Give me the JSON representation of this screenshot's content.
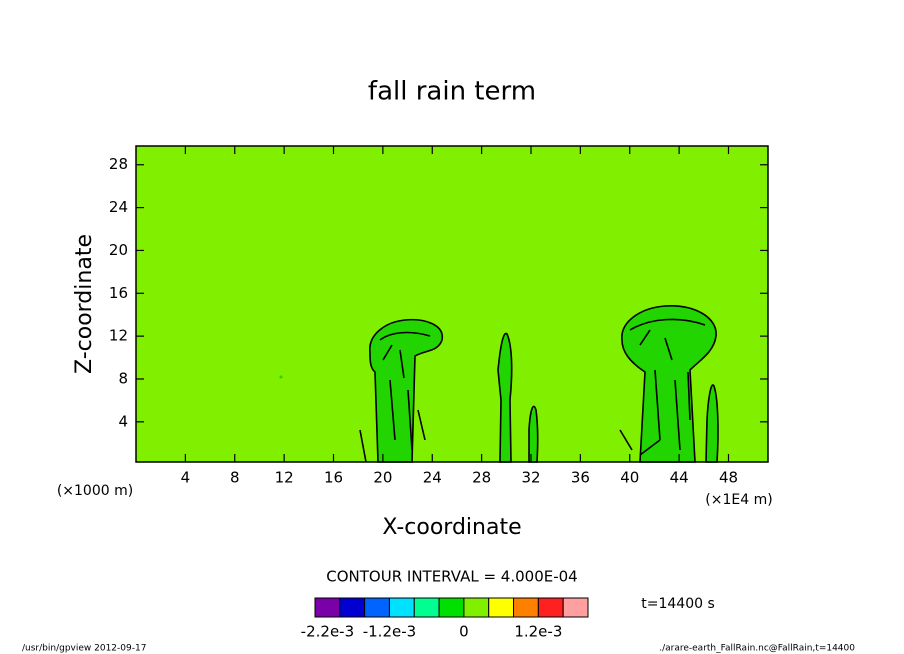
{
  "chart_data": {
    "type": "contour",
    "title": "fall rain term",
    "x_label": "X-coordinate",
    "y_label": "Z-coordinate",
    "x_unit": "(×1E4 m)",
    "y_unit": "(×1000 m)",
    "xlim": [
      0,
      51.2
    ],
    "xticks": [
      4,
      8,
      12,
      16,
      20,
      24,
      28,
      32,
      36,
      40,
      44,
      48
    ],
    "ylim": [
      0.25,
      29.75
    ],
    "yticks": [
      4,
      8,
      12,
      16,
      20,
      24,
      28
    ],
    "field_color": "#80f000",
    "contour_interval": "CONTOUR INTERVAL = 4.000E-04",
    "time_label": "t=14400 s",
    "colorbar": {
      "lim": [
        -0.0024,
        0.002
      ],
      "colors": [
        "#7a00a8",
        "#0000d0",
        "#0064ff",
        "#00e0ff",
        "#00ff90",
        "#00e000",
        "#80f000",
        "#ffff00",
        "#ff8000",
        "#ff2020",
        "#ffa0a0"
      ],
      "ticks": [
        {
          "value": -0.0022,
          "label": "-2.2e-3"
        },
        {
          "value": -0.0012,
          "label": "-1.2e-3"
        },
        0,
        {
          "value": 0.0012,
          "label": "1.2e-3"
        }
      ]
    }
  },
  "footer": {
    "left": "/usr/bin/gpview  2012-09-17",
    "right": "./arare-earth_FallRain.nc@FallRain,t=14400"
  }
}
